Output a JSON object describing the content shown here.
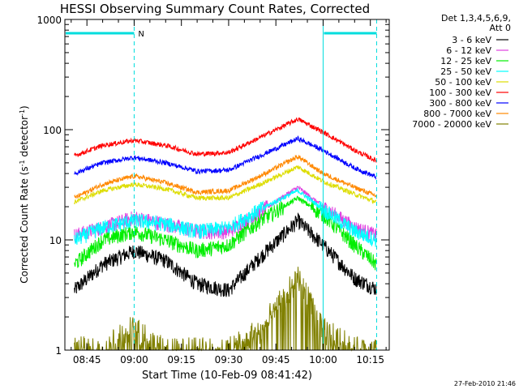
{
  "chart_data": {
    "type": "line",
    "title": "HESSI Observing Summary Count Rates, Corrected",
    "xlabel": "Start Time (10-Feb-09 08:41:42)",
    "ylabel": "Corrected Count Rate (s",
    "ylabel_sup1": "-1",
    "ylabel_mid": " detector",
    "ylabel_sup2": "-1",
    "ylabel_end": ")",
    "footer": "27-Feb-2010 21:46",
    "xscale": "time",
    "yscale": "log",
    "xlim": [
      "08:38",
      "10:21"
    ],
    "ylim": [
      1,
      1000
    ],
    "grid": false,
    "legend_position": "right",
    "legend_header": [
      "Det 1,3,4,5,6,9,",
      "Att 0"
    ],
    "x_ticks": [
      "08:45",
      "09:00",
      "09:15",
      "09:30",
      "09:45",
      "10:00",
      "10:15"
    ],
    "y_ticks": [
      {
        "value": 1,
        "label": "1"
      },
      {
        "value": 10,
        "label": "10"
      },
      {
        "value": 100,
        "label": "100"
      },
      {
        "value": 1000,
        "label": "1000"
      }
    ],
    "night_segments": [
      {
        "start": "08:38",
        "end": "09:00",
        "label": "N"
      },
      {
        "start": "10:00",
        "end": "10:17",
        "label": ""
      }
    ],
    "dashed_markers": [
      "09:00",
      "10:17"
    ],
    "solid_markers": [
      "08:38",
      "10:00"
    ],
    "profile_x": [
      "08:41",
      "08:50",
      "09:00",
      "09:10",
      "09:20",
      "09:30",
      "09:40",
      "09:52",
      "10:00",
      "10:10",
      "10:17"
    ],
    "series": [
      {
        "name": "3 - 6 keV",
        "color": "#000000",
        "values": [
          3.5,
          6.0,
          8.0,
          6.5,
          4.0,
          3.5,
          7.0,
          15.0,
          9.0,
          4.5,
          3.6
        ]
      },
      {
        "name": "6 - 12 keV",
        "color": "#e040e0",
        "values": [
          11,
          13,
          16,
          14,
          12,
          12,
          18,
          30,
          20,
          13,
          11
        ]
      },
      {
        "name": "12 - 25 keV",
        "color": "#00ee00",
        "values": [
          6,
          10,
          12,
          10,
          8,
          9,
          15,
          24,
          17,
          9,
          6
        ]
      },
      {
        "name": "25 - 50 keV",
        "color": "#00ffff",
        "values": [
          10,
          13,
          15,
          14,
          12,
          13,
          19,
          28,
          19,
          12,
          10
        ]
      },
      {
        "name": "50 - 100 keV",
        "color": "#dddd00",
        "values": [
          22,
          28,
          32,
          29,
          24,
          24,
          32,
          46,
          34,
          26,
          22
        ]
      },
      {
        "name": "100 - 300 keV",
        "color": "#ff0000",
        "values": [
          58,
          72,
          80,
          72,
          60,
          62,
          85,
          125,
          95,
          65,
          52
        ]
      },
      {
        "name": "300 - 800 keV",
        "color": "#0000ff",
        "values": [
          40,
          50,
          56,
          50,
          42,
          43,
          58,
          83,
          65,
          45,
          37
        ]
      },
      {
        "name": "800 - 7000 keV",
        "color": "#ff8800",
        "values": [
          24,
          32,
          38,
          33,
          27,
          28,
          38,
          57,
          40,
          30,
          25
        ]
      },
      {
        "name": "7000 - 20000 keV",
        "color": "#808000",
        "values": [
          1,
          1,
          1.6,
          1,
          1,
          1,
          1.5,
          4.5,
          1.5,
          1,
          1
        ]
      }
    ]
  }
}
